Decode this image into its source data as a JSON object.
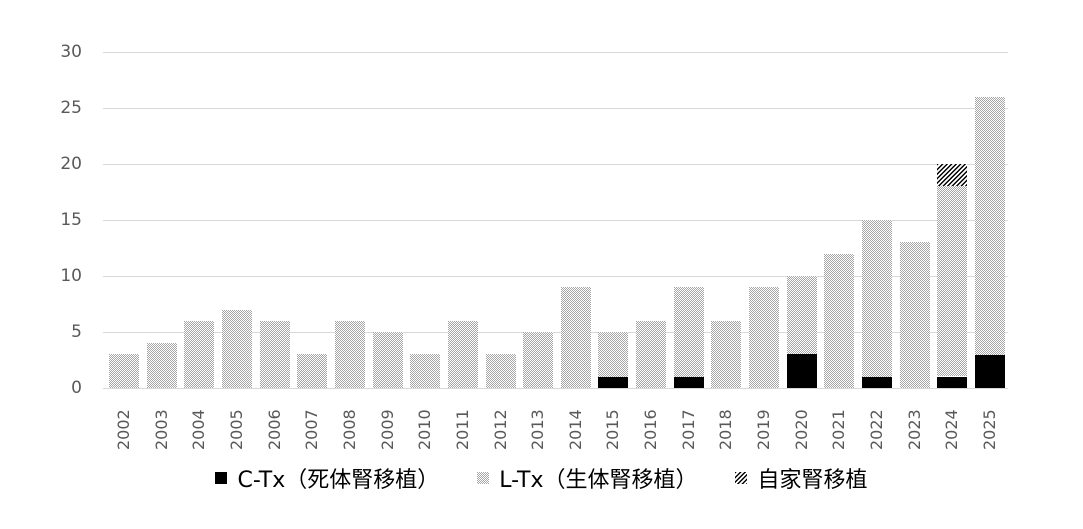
{
  "chart_data": {
    "type": "bar",
    "stacked": true,
    "title": "",
    "xlabel": "",
    "ylabel": "",
    "ylim": [
      0,
      30
    ],
    "yticks": [
      0,
      5,
      10,
      15,
      20,
      25,
      30
    ],
    "grid": true,
    "legend_position": "bottom",
    "categories": [
      "2002",
      "2003",
      "2004",
      "2005",
      "2006",
      "2007",
      "2008",
      "2009",
      "2010",
      "2011",
      "2012",
      "2013",
      "2014",
      "2015",
      "2016",
      "2017",
      "2018",
      "2019",
      "2020",
      "2021",
      "2022",
      "2023",
      "2024",
      "2025"
    ],
    "series": [
      {
        "name": "C-Tx（死体腎移植）",
        "key": "c",
        "color": "#000000",
        "pattern": "solid",
        "values": [
          0,
          0,
          0,
          0,
          0,
          0,
          0,
          0,
          0,
          0,
          0,
          0,
          0,
          1,
          0,
          1,
          0,
          0,
          3,
          0,
          1,
          0,
          1,
          3
        ]
      },
      {
        "name": "L-Tx（生体腎移植）",
        "key": "l",
        "color": "#a6a6a6",
        "pattern": "dotted-gray",
        "values": [
          3,
          4,
          6,
          7,
          6,
          3,
          6,
          5,
          3,
          6,
          3,
          5,
          9,
          4,
          6,
          8,
          6,
          9,
          7,
          12,
          14,
          13,
          17,
          23
        ]
      },
      {
        "name": "自家腎移植",
        "key": "s",
        "color": "#000000",
        "pattern": "diagonal-hatch",
        "values": [
          0,
          0,
          0,
          0,
          0,
          0,
          0,
          0,
          0,
          0,
          0,
          0,
          0,
          0,
          0,
          0,
          0,
          0,
          0,
          0,
          0,
          0,
          2,
          0
        ]
      }
    ],
    "totals": [
      3,
      4,
      6,
      7,
      6,
      3,
      6,
      5,
      3,
      6,
      3,
      5,
      9,
      5,
      6,
      9,
      6,
      9,
      10,
      12,
      15,
      13,
      20,
      26
    ]
  },
  "legend": {
    "items": [
      {
        "label": "C-Tx（死体腎移植）"
      },
      {
        "label": "L-Tx（生体腎移植）"
      },
      {
        "label": "自家腎移植"
      }
    ]
  }
}
